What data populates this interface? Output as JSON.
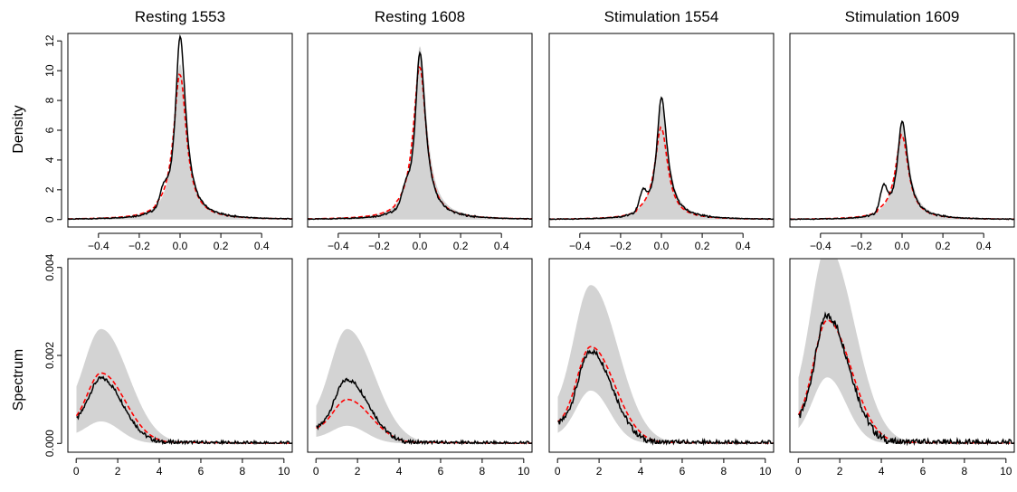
{
  "figure": {
    "row_labels": [
      "Density",
      "Spectrum"
    ],
    "panels": [
      "Resting 1553",
      "Resting 1608",
      "Stimulation 1554",
      "Stimulation 1609"
    ]
  },
  "chart_data": [
    {
      "type": "line",
      "panel_title": "Resting 1553",
      "ylabel": "Density",
      "xlim": [
        -0.55,
        0.55
      ],
      "ylim": [
        -0.5,
        12.5
      ],
      "xticks": [
        -0.4,
        -0.2,
        0.0,
        0.2,
        0.4
      ],
      "yticks": [
        0,
        2,
        4,
        6,
        8,
        10,
        12
      ],
      "shape": "peak",
      "peak_x": 0.0,
      "observed_peak": 12.0,
      "fitted_peak": 9.6,
      "band_peak": 10.2,
      "shoulder_x": -0.08,
      "shoulder_y": 1.9
    },
    {
      "type": "line",
      "panel_title": "Resting 1608",
      "ylabel": "",
      "xlim": [
        -0.55,
        0.55
      ],
      "ylim": [
        -0.5,
        12.5
      ],
      "xticks": [
        -0.4,
        -0.2,
        0.0,
        0.2,
        0.4
      ],
      "yticks": [
        0,
        2,
        4,
        6,
        8,
        10,
        12
      ],
      "shape": "peak",
      "peak_x": 0.0,
      "observed_peak": 10.9,
      "fitted_peak": 10.1,
      "band_peak": 11.4,
      "shoulder_x": -0.07,
      "shoulder_y": 1.8
    },
    {
      "type": "line",
      "panel_title": "Stimulation 1554",
      "ylabel": "",
      "xlim": [
        -0.55,
        0.55
      ],
      "ylim": [
        -0.5,
        12.5
      ],
      "xticks": [
        -0.4,
        -0.2,
        0.0,
        0.2,
        0.4
      ],
      "yticks": [
        0,
        2,
        4,
        6,
        8,
        10,
        12
      ],
      "shape": "peak",
      "peak_x": 0.0,
      "observed_peak": 7.9,
      "fitted_peak": 6.0,
      "band_peak": 7.4,
      "shoulder_x": -0.09,
      "shoulder_y": 2.2
    },
    {
      "type": "line",
      "panel_title": "Stimulation 1609",
      "ylabel": "",
      "xlim": [
        -0.55,
        0.55
      ],
      "ylim": [
        -0.5,
        12.5
      ],
      "xticks": [
        -0.4,
        -0.2,
        0.0,
        0.2,
        0.4
      ],
      "yticks": [
        0,
        2,
        4,
        6,
        8,
        10,
        12
      ],
      "shape": "peak",
      "peak_x": 0.0,
      "observed_peak": 6.3,
      "fitted_peak": 5.5,
      "band_peak": 6.3,
      "shoulder_x": -0.09,
      "shoulder_y": 3.0
    },
    {
      "type": "line",
      "panel_title": "",
      "ylabel": "Spectrum",
      "xlim": [
        -0.4,
        10.4
      ],
      "ylim": [
        -0.0002,
        0.0042
      ],
      "xticks": [
        0,
        2,
        4,
        6,
        8,
        10
      ],
      "yticks": [
        0.0,
        0.002,
        0.004
      ],
      "ytick_labels": [
        "0.000",
        "0.002",
        "0.004"
      ],
      "shape": "spectrum",
      "peak_x": 1.2,
      "start_y": 0.0004,
      "observed_peak": 0.00148,
      "fitted_peak": 0.0016,
      "band_upper_peak": 0.0026,
      "band_lower_peak": 0.0005
    },
    {
      "type": "line",
      "panel_title": "",
      "ylabel": "",
      "xlim": [
        -0.4,
        10.4
      ],
      "ylim": [
        -0.0002,
        0.0042
      ],
      "xticks": [
        0,
        2,
        4,
        6,
        8,
        10
      ],
      "yticks": [
        0.0,
        0.002,
        0.004
      ],
      "ytick_labels": [
        "0.000",
        "0.002",
        "0.004"
      ],
      "shape": "spectrum",
      "peak_x": 1.5,
      "start_y": 0.0003,
      "observed_peak": 0.00145,
      "fitted_peak": 0.001,
      "band_upper_peak": 0.0026,
      "band_lower_peak": 0.0004
    },
    {
      "type": "line",
      "panel_title": "",
      "ylabel": "",
      "xlim": [
        -0.4,
        10.4
      ],
      "ylim": [
        -0.0002,
        0.0042
      ],
      "xticks": [
        0,
        2,
        4,
        6,
        8,
        10
      ],
      "yticks": [
        0.0,
        0.002,
        0.004
      ],
      "ytick_labels": [
        "0.000",
        "0.002",
        "0.004"
      ],
      "shape": "spectrum",
      "peak_x": 1.6,
      "start_y": 0.0004,
      "observed_peak": 0.0021,
      "fitted_peak": 0.0022,
      "band_upper_peak": 0.0036,
      "band_lower_peak": 0.0012
    },
    {
      "type": "line",
      "panel_title": "",
      "ylabel": "",
      "xlim": [
        -0.4,
        10.4
      ],
      "ylim": [
        -0.0002,
        0.0042
      ],
      "xticks": [
        0,
        2,
        4,
        6,
        8,
        10
      ],
      "yticks": [
        0.0,
        0.002,
        0.004
      ],
      "ytick_labels": [
        "0.000",
        "0.002",
        "0.004"
      ],
      "shape": "spectrum",
      "peak_x": 1.4,
      "start_y": 0.0004,
      "observed_peak": 0.0029,
      "fitted_peak": 0.0028,
      "band_upper_peak": 0.0045,
      "band_lower_peak": 0.0015
    }
  ],
  "colors": {
    "observed": "#000000",
    "fitted": "#ff0000",
    "band": "#d3d3d3",
    "frame": "#000000"
  }
}
